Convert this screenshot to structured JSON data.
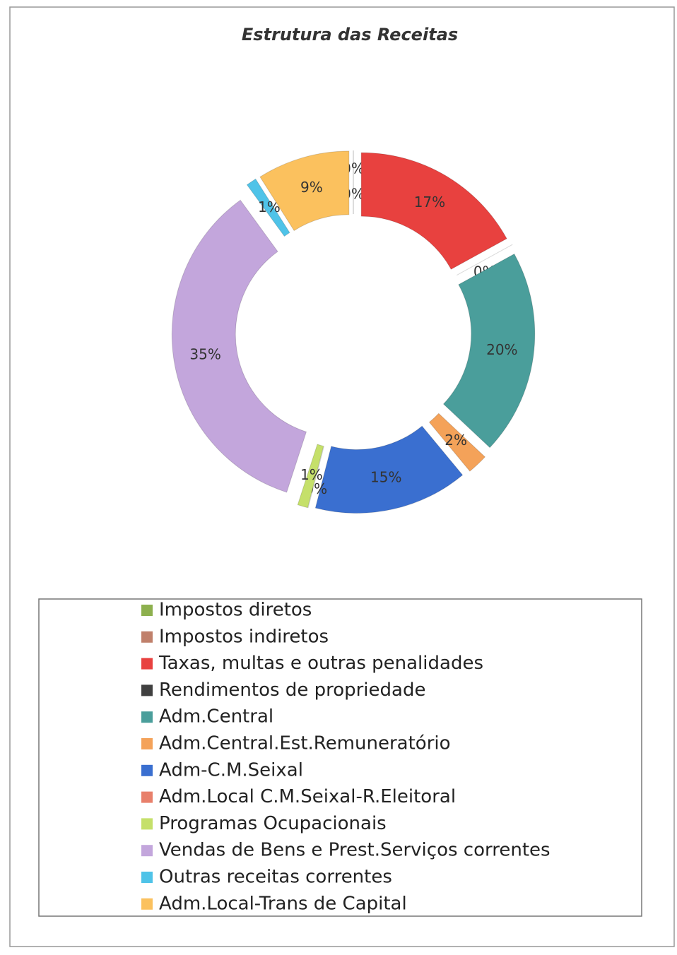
{
  "chart_data": {
    "type": "doughnut",
    "title": "Estrutura das Receitas",
    "categories": [
      "Impostos diretos",
      "Impostos indiretos",
      "Taxas, multas e outras penalidades",
      "Rendimentos de propriedade",
      "Adm.Central",
      "Adm.Central.Est.Remuneratório",
      "Adm-C.M.Seixal",
      "Adm.Local C.M.Seixal-R.Eleitoral",
      "Programas Ocupacionais",
      "Vendas de Bens e Prest.Serviços correntes",
      "Outras receitas correntes",
      "Adm.Local-Trans de Capital"
    ],
    "values": [
      0,
      0,
      17,
      0,
      20,
      2,
      15,
      0,
      1,
      35,
      1,
      9
    ],
    "value_labels": [
      "0%",
      "0%",
      "17%",
      "0%",
      "20%",
      "2%",
      "15%",
      "0%",
      "1%",
      "35%",
      "1%",
      "9%"
    ],
    "colors": [
      "#8db04e",
      "#c0806b",
      "#e8413f",
      "#404040",
      "#4a9e9b",
      "#f4a259",
      "#3a6fd0",
      "#e8806b",
      "#c5e06a",
      "#c3a6dc",
      "#4fc3e8",
      "#fbc15e"
    ],
    "legend": "bottom"
  }
}
